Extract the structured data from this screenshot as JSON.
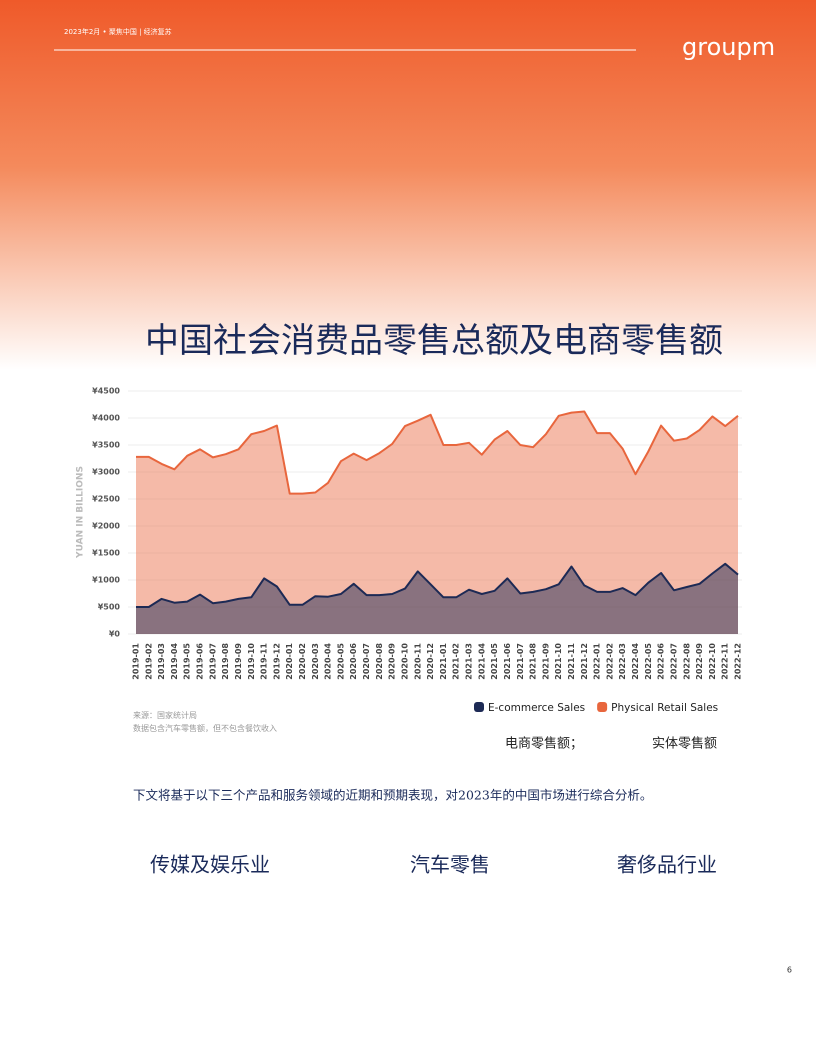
{
  "header": {
    "meta": "2023年2月 • 聚焦中国 | 经济复苏",
    "logo": "groupm"
  },
  "title": "中国社会消费品零售总额及电商零售额",
  "chart_data": {
    "type": "area",
    "y_label": "YUAN IN BILLIONS",
    "categories": [
      "2019-01",
      "2019-02",
      "2019-03",
      "2019-04",
      "2019-05",
      "2019-06",
      "2019-07",
      "2019-08",
      "2019-09",
      "2019-10",
      "2019-11",
      "2019-12",
      "2020-01",
      "2020-02",
      "2020-03",
      "2020-04",
      "2020-05",
      "2020-06",
      "2020-07",
      "2020-08",
      "2020-09",
      "2020-10",
      "2020-11",
      "2020-12",
      "2021-01",
      "2021-02",
      "2021-03",
      "2021-04",
      "2021-05",
      "2021-06",
      "2021-07",
      "2021-08",
      "2021-09",
      "2021-10",
      "2021-11",
      "2021-12",
      "2022-01",
      "2022-02",
      "2022-03",
      "2022-04",
      "2022-05",
      "2022-06",
      "2022-07",
      "2022-08",
      "2022-09",
      "2022-10",
      "2022-11",
      "2022-12"
    ],
    "series": [
      {
        "name": "Physical Retail Sales",
        "color": "#e8663d",
        "values": [
          3280,
          3280,
          3150,
          3050,
          3300,
          3420,
          3270,
          3330,
          3420,
          3700,
          3760,
          3860,
          2600,
          2600,
          2620,
          2800,
          3200,
          3340,
          3220,
          3350,
          3520,
          3850,
          3950,
          4060,
          3500,
          3500,
          3540,
          3320,
          3600,
          3760,
          3500,
          3460,
          3700,
          4040,
          4100,
          4120,
          3720,
          3720,
          3430,
          2960,
          3380,
          3860,
          3580,
          3620,
          3780,
          4030,
          3850,
          4040
        ]
      },
      {
        "name": "E-commerce Sales",
        "color": "#1d2a55",
        "values": [
          500,
          500,
          650,
          580,
          600,
          730,
          570,
          600,
          650,
          680,
          1030,
          880,
          540,
          540,
          700,
          690,
          740,
          930,
          720,
          720,
          740,
          840,
          1160,
          920,
          680,
          680,
          820,
          740,
          800,
          1030,
          750,
          780,
          830,
          920,
          1250,
          900,
          780,
          780,
          850,
          720,
          950,
          1130,
          810,
          870,
          930,
          1120,
          1300,
          1100
        ]
      }
    ],
    "legend_order": [
      "E-commerce Sales",
      "Physical Retail Sales"
    ],
    "ylim": [
      0,
      4500
    ],
    "yticks": [
      {
        "value": 0,
        "label": "¥0"
      },
      {
        "value": 500,
        "label": "¥500"
      },
      {
        "value": 1000,
        "label": "¥1000"
      },
      {
        "value": 1500,
        "label": "¥1500"
      },
      {
        "value": 2000,
        "label": "¥2000"
      },
      {
        "value": 2500,
        "label": "¥2500"
      },
      {
        "value": 3000,
        "label": "¥3000"
      },
      {
        "value": 3500,
        "label": "¥3500"
      },
      {
        "value": 4000,
        "label": "¥4000"
      },
      {
        "value": 4500,
        "label": "¥4500"
      }
    ],
    "grid": true
  },
  "notes": {
    "source": "来源：国家统计局",
    "scope": "数据包含汽车零售额，但不包含餐饮收入",
    "cn_legend_1": "电商零售额；",
    "cn_legend_2": "实体零售额"
  },
  "paragraph": "下文将基于以下三个产品和服务领域的近期和预期表现，对2023年的中国市场进行综合分析。",
  "sectors": [
    "传媒及娱乐业",
    "汽车零售",
    "奢侈品行业"
  ],
  "page_number": "6"
}
